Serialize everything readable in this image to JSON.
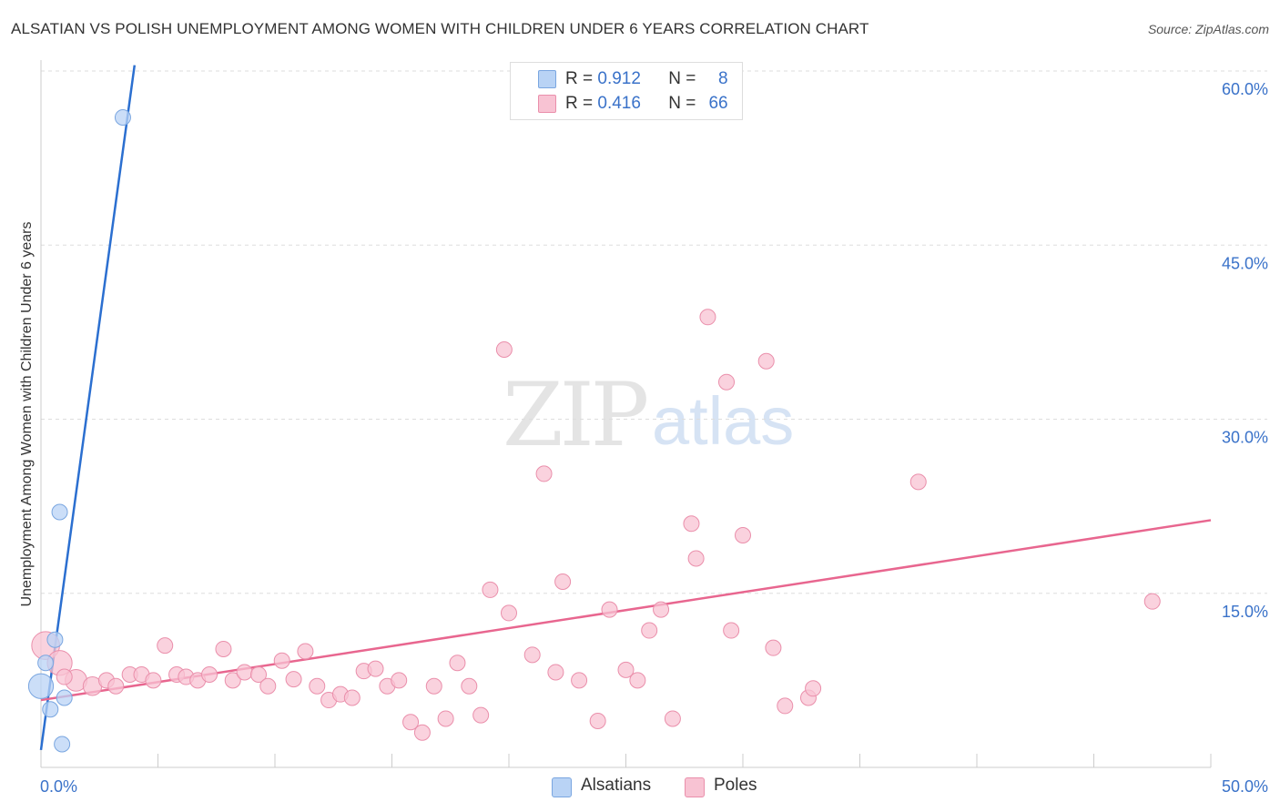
{
  "title": "ALSATIAN VS POLISH UNEMPLOYMENT AMONG WOMEN WITH CHILDREN UNDER 6 YEARS CORRELATION CHART",
  "source": "Source: ZipAtlas.com",
  "watermark": {
    "zip": "ZIP",
    "atlas": "atlas"
  },
  "legend": {
    "r_label": "R =",
    "n_label": "N =",
    "rows": [
      {
        "r": "0.912",
        "n": "8"
      },
      {
        "r": "0.416",
        "n": "66"
      }
    ]
  },
  "colors": {
    "alsatians_fill": "#b9d3f5",
    "alsatians_stroke": "#7aa6e0",
    "alsatians_line": "#2b6fd0",
    "poles_fill": "#f8c3d3",
    "poles_stroke": "#ea8fab",
    "poles_line": "#e8668f",
    "axis_text": "#3a72c9",
    "grid": "#dddddd"
  },
  "chart_data": {
    "type": "scatter",
    "title": "ALSATIAN VS POLISH UNEMPLOYMENT AMONG WOMEN WITH CHILDREN UNDER 6 YEARS CORRELATION CHART",
    "xlabel": "",
    "ylabel": "Unemployment Among Women with Children Under 6 years",
    "xlim": [
      0,
      50
    ],
    "ylim": [
      0,
      62
    ],
    "x_tick_labels": [
      {
        "value": 0,
        "label": "0.0%"
      },
      {
        "value": 50,
        "label": "50.0%"
      }
    ],
    "y_tick_labels": [
      {
        "value": 15,
        "label": "15.0%"
      },
      {
        "value": 30,
        "label": "30.0%"
      },
      {
        "value": 45,
        "label": "45.0%"
      },
      {
        "value": 60,
        "label": "60.0%"
      }
    ],
    "legend": [
      "Alsatians",
      "Poles"
    ],
    "series": [
      {
        "name": "Alsatians",
        "points": [
          [
            0.0,
            7.0,
            1.6
          ],
          [
            0.2,
            9.0,
            1
          ],
          [
            0.4,
            5.0,
            1
          ],
          [
            0.6,
            11.0,
            1
          ],
          [
            0.8,
            22.0,
            1
          ],
          [
            0.9,
            2.0,
            1
          ],
          [
            1.0,
            6.0,
            1
          ],
          [
            3.5,
            56.0,
            1
          ]
        ],
        "trend": {
          "x0": 0.0,
          "y0": 1.5,
          "x1": 4.0,
          "y1": 60.5
        }
      },
      {
        "name": "Poles",
        "points": [
          [
            0.2,
            10.5,
            1.8
          ],
          [
            0.8,
            9.0,
            1.6
          ],
          [
            1.5,
            7.5,
            1.4
          ],
          [
            2.2,
            7.0,
            1.2
          ],
          [
            2.8,
            7.5,
            1
          ],
          [
            3.2,
            7.0,
            1
          ],
          [
            3.8,
            8.0,
            1
          ],
          [
            4.3,
            8.0,
            1
          ],
          [
            4.8,
            7.5,
            1
          ],
          [
            5.3,
            10.5,
            1
          ],
          [
            5.8,
            8.0,
            1
          ],
          [
            6.2,
            7.8,
            1
          ],
          [
            6.7,
            7.5,
            1
          ],
          [
            7.2,
            8.0,
            1
          ],
          [
            7.8,
            10.2,
            1
          ],
          [
            8.2,
            7.5,
            1
          ],
          [
            8.7,
            8.2,
            1
          ],
          [
            9.3,
            8.0,
            1
          ],
          [
            9.7,
            7.0,
            1
          ],
          [
            10.3,
            9.2,
            1
          ],
          [
            10.8,
            7.6,
            1
          ],
          [
            11.3,
            10.0,
            1
          ],
          [
            11.8,
            7.0,
            1
          ],
          [
            12.3,
            5.8,
            1
          ],
          [
            12.8,
            6.3,
            1
          ],
          [
            13.3,
            6.0,
            1
          ],
          [
            13.8,
            8.3,
            1
          ],
          [
            14.3,
            8.5,
            1
          ],
          [
            14.8,
            7.0,
            1
          ],
          [
            15.3,
            7.5,
            1
          ],
          [
            15.8,
            3.9,
            1
          ],
          [
            16.3,
            3.0,
            1
          ],
          [
            16.8,
            7.0,
            1
          ],
          [
            17.3,
            4.2,
            1
          ],
          [
            17.8,
            9.0,
            1
          ],
          [
            18.3,
            7.0,
            1
          ],
          [
            18.8,
            4.5,
            1
          ],
          [
            19.2,
            15.3,
            1
          ],
          [
            19.8,
            36.0,
            1
          ],
          [
            20.0,
            13.3,
            1
          ],
          [
            21.0,
            9.7,
            1
          ],
          [
            21.5,
            25.3,
            1
          ],
          [
            22.0,
            8.2,
            1
          ],
          [
            22.3,
            16.0,
            1
          ],
          [
            23.0,
            7.5,
            1
          ],
          [
            23.8,
            4.0,
            1
          ],
          [
            24.3,
            13.6,
            1
          ],
          [
            25.0,
            8.4,
            1
          ],
          [
            25.5,
            7.5,
            1
          ],
          [
            26.0,
            11.8,
            1
          ],
          [
            26.5,
            13.6,
            1
          ],
          [
            27.0,
            4.2,
            1
          ],
          [
            27.8,
            21.0,
            1
          ],
          [
            28.0,
            18.0,
            1
          ],
          [
            28.5,
            38.8,
            1
          ],
          [
            29.3,
            33.2,
            1
          ],
          [
            29.5,
            11.8,
            1
          ],
          [
            30.0,
            20.0,
            1
          ],
          [
            31.0,
            35.0,
            1
          ],
          [
            31.3,
            10.3,
            1
          ],
          [
            31.8,
            5.3,
            1
          ],
          [
            32.8,
            6.0,
            1
          ],
          [
            33.0,
            6.8,
            1
          ],
          [
            37.5,
            24.6,
            1
          ],
          [
            47.5,
            14.3,
            1
          ],
          [
            1.0,
            7.8,
            1
          ]
        ],
        "trend": {
          "x0": 0.0,
          "y0": 5.8,
          "x1": 50.0,
          "y1": 21.3
        }
      }
    ]
  }
}
